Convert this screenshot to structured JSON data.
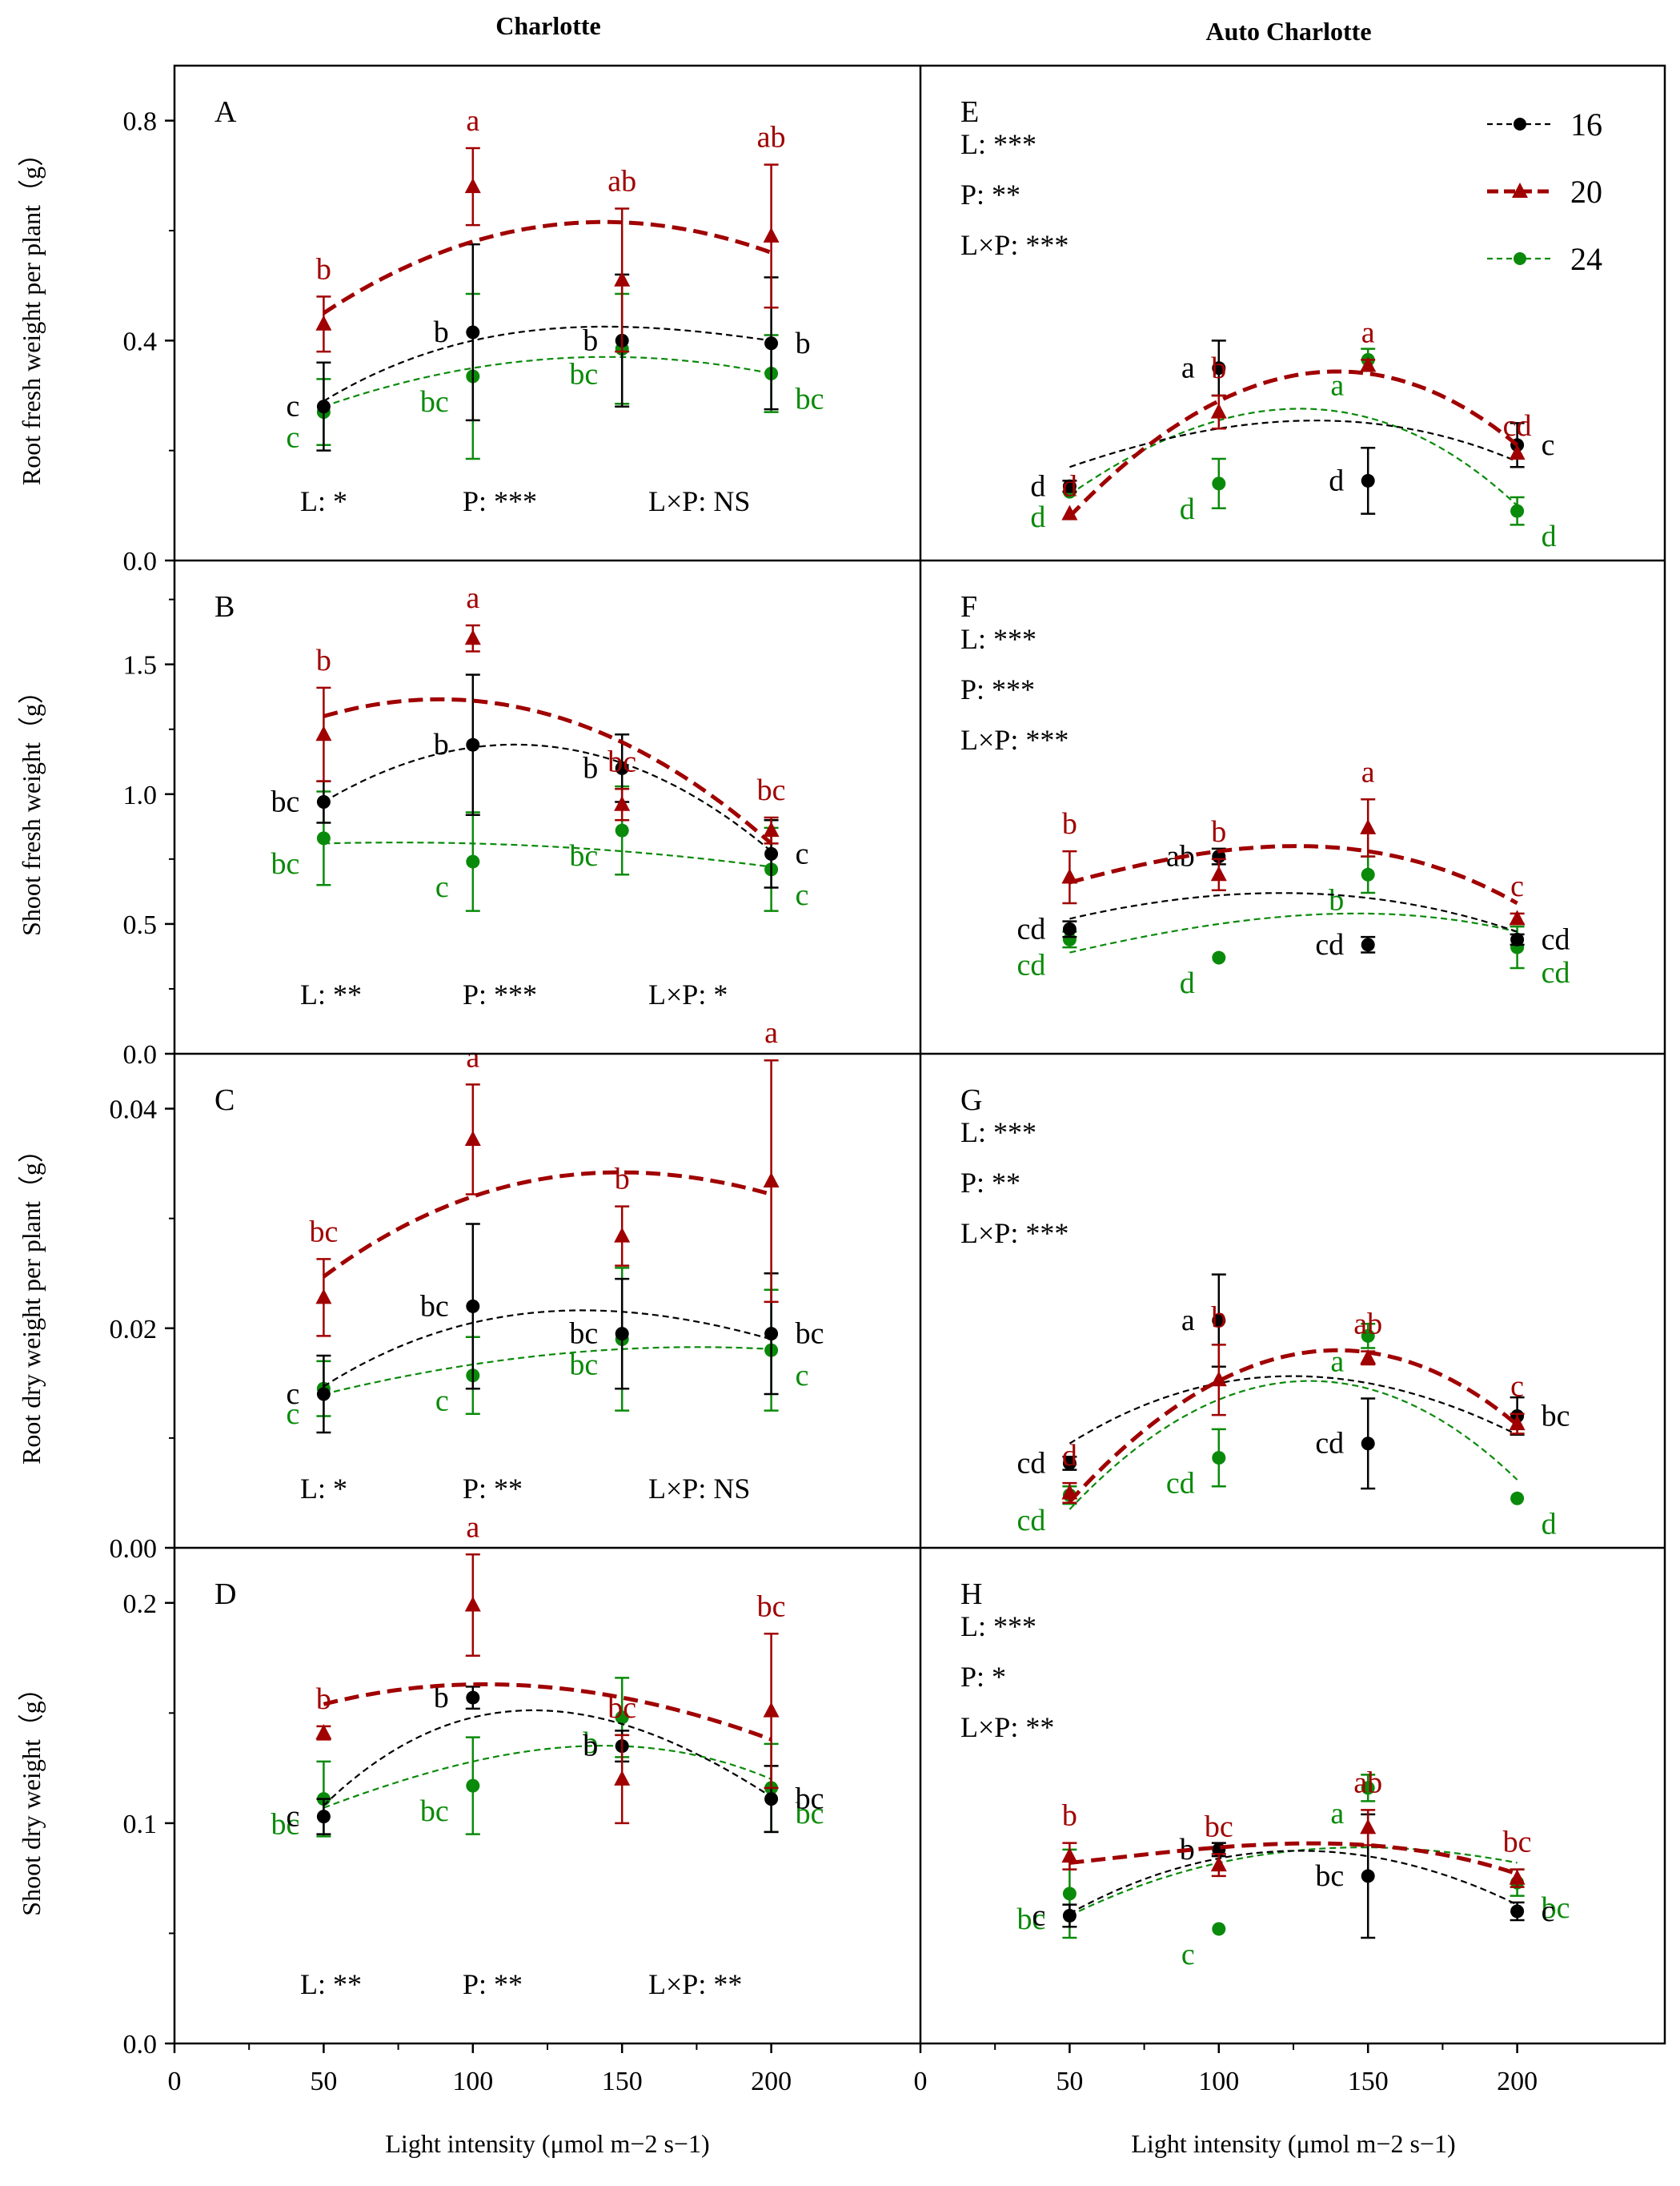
{
  "figure": {
    "col_titles": [
      "Charlotte",
      "Auto Charlotte"
    ],
    "xlabel": "Light intensity (μmol m−2 s−1)",
    "xticks": [
      "0",
      "50",
      "100",
      "150",
      "200",
      "0",
      "50",
      "100",
      "150",
      "200"
    ],
    "legend": [
      {
        "name": "16",
        "color": "#000000",
        "marker": "circle"
      },
      {
        "name": "20",
        "color": "#a00000",
        "marker": "triangle"
      },
      {
        "name": "24",
        "color": "#0a8a0a",
        "marker": "circle"
      }
    ]
  },
  "chart_data": [
    {
      "type": "scatter",
      "panel": "A",
      "cultivar": "Charlotte",
      "ylabel": "Root fresh weight per plant（g）",
      "ylim": [
        0,
        0.9
      ],
      "yticks": [
        "0.0",
        "0.4",
        "0.8"
      ],
      "x": [
        50,
        100,
        150,
        200
      ],
      "series": [
        {
          "name": "16",
          "values": [
            0.28,
            0.415,
            0.4,
            0.395
          ],
          "err": [
            0.08,
            0.16,
            0.12,
            0.12
          ],
          "letters": [
            "c",
            "b",
            "b",
            "b"
          ],
          "fit": [
            [
              50,
              0.29
            ],
            [
              100,
              0.4
            ],
            [
              150,
              0.425
            ],
            [
              200,
              0.4
            ]
          ]
        },
        {
          "name": "20",
          "values": [
            0.43,
            0.68,
            0.51,
            0.59
          ],
          "err": [
            0.05,
            0.07,
            0.13,
            0.13
          ],
          "letters": [
            "b",
            "a",
            "ab",
            "ab"
          ],
          "fit": [
            [
              50,
              0.45
            ],
            [
              100,
              0.58
            ],
            [
              150,
              0.615
            ],
            [
              200,
              0.56
            ]
          ]
        },
        {
          "name": "24",
          "values": [
            0.27,
            0.335,
            0.385,
            0.34
          ],
          "err": [
            0.06,
            0.15,
            0.1,
            0.07
          ],
          "letters": [
            "c",
            "bc",
            "bc",
            "bc"
          ],
          "fit": [
            [
              50,
              0.28
            ],
            [
              100,
              0.35
            ],
            [
              150,
              0.37
            ],
            [
              200,
              0.34
            ]
          ]
        }
      ],
      "stats": [
        "L: *",
        "P: ***",
        "L×P: NS"
      ]
    },
    {
      "type": "scatter",
      "panel": "B",
      "cultivar": "Charlotte",
      "ylabel": "Shoot fresh weight（g）",
      "ylim": [
        0,
        1.9
      ],
      "yticks": [
        "0.0",
        "0.5",
        "1.0",
        "1.5"
      ],
      "x": [
        50,
        100,
        150,
        200
      ],
      "series": [
        {
          "name": "16",
          "values": [
            0.97,
            1.19,
            1.1,
            0.77
          ],
          "err": [
            0.08,
            0.27,
            0.13,
            0.13
          ],
          "letters": [
            "bc",
            "b",
            "b",
            "c"
          ],
          "fit": [
            [
              50,
              0.97
            ],
            [
              100,
              1.18
            ],
            [
              150,
              1.12
            ],
            [
              200,
              0.78
            ]
          ]
        },
        {
          "name": "20",
          "values": [
            1.23,
            1.6,
            0.96,
            0.86
          ],
          "err": [
            0.18,
            0.05,
            0.06,
            0.05
          ],
          "letters": [
            "b",
            "a",
            "bc",
            "bc"
          ],
          "fit": [
            [
              50,
              1.3
            ],
            [
              100,
              1.36
            ],
            [
              150,
              1.2
            ],
            [
              200,
              0.81
            ]
          ]
        },
        {
          "name": "24",
          "values": [
            0.83,
            0.74,
            0.86,
            0.71
          ],
          "err": [
            0.18,
            0.19,
            0.17,
            0.16
          ],
          "letters": [
            "bc",
            "c",
            "bc",
            "c"
          ],
          "fit": [
            [
              50,
              0.81
            ],
            [
              100,
              0.81
            ],
            [
              150,
              0.78
            ],
            [
              200,
              0.72
            ]
          ]
        }
      ],
      "stats": [
        "L: **",
        "P: ***",
        "L×P: *"
      ]
    },
    {
      "type": "scatter",
      "panel": "C",
      "cultivar": "Charlotte",
      "ylabel": "Root dry weight per plant（g）",
      "ylim": [
        0,
        0.045
      ],
      "yticks": [
        "0.00",
        "0.02",
        "0.04"
      ],
      "x": [
        50,
        100,
        150,
        200
      ],
      "series": [
        {
          "name": "16",
          "values": [
            0.014,
            0.022,
            0.0195,
            0.0195
          ],
          "err": [
            0.0035,
            0.0075,
            0.005,
            0.0055
          ],
          "letters": [
            "c",
            "bc",
            "bc",
            "bc"
          ],
          "fit": [
            [
              50,
              0.0147
            ],
            [
              100,
              0.0205
            ],
            [
              150,
              0.0215
            ],
            [
              200,
              0.019
            ]
          ]
        },
        {
          "name": "20",
          "values": [
            0.0228,
            0.0372,
            0.0284,
            0.0334
          ],
          "err": [
            0.0035,
            0.005,
            0.0027,
            0.011
          ],
          "letters": [
            "bc",
            "a",
            "b",
            "a"
          ],
          "fit": [
            [
              50,
              0.0247
            ],
            [
              100,
              0.032
            ],
            [
              150,
              0.0342
            ],
            [
              200,
              0.0322
            ]
          ]
        },
        {
          "name": "24",
          "values": [
            0.0145,
            0.0157,
            0.019,
            0.018
          ],
          "err": [
            0.0025,
            0.0035,
            0.0065,
            0.0055
          ],
          "letters": [
            "c",
            "c",
            "bc",
            "c"
          ],
          "fit": [
            [
              50,
              0.014
            ],
            [
              100,
              0.0167
            ],
            [
              150,
              0.0181
            ],
            [
              200,
              0.0181
            ]
          ]
        }
      ],
      "stats": [
        "L: *",
        "P: **",
        "L×P: NS"
      ]
    },
    {
      "type": "scatter",
      "panel": "D",
      "cultivar": "Charlotte",
      "ylabel": "Shoot dry weight（g）",
      "ylim": [
        0,
        0.225
      ],
      "yticks": [
        "0.0",
        "0.1",
        "0.2"
      ],
      "x": [
        50,
        100,
        150,
        200
      ],
      "series": [
        {
          "name": "16",
          "values": [
            0.103,
            0.157,
            0.135,
            0.111
          ],
          "err": [
            0.008,
            0.005,
            0.007,
            0.015
          ],
          "letters": [
            "c",
            "b",
            "b",
            "bc"
          ],
          "fit": [
            [
              50,
              0.108
            ],
            [
              100,
              0.148
            ],
            [
              150,
              0.145
            ],
            [
              200,
              0.112
            ]
          ]
        },
        {
          "name": "20",
          "values": [
            0.141,
            0.199,
            0.12,
            0.151
          ],
          "err": [
            0.003,
            0.023,
            0.02,
            0.035
          ],
          "letters": [
            "b",
            "a",
            "bc",
            "bc"
          ],
          "fit": [
            [
              50,
              0.154
            ],
            [
              100,
              0.163
            ],
            [
              150,
              0.157
            ],
            [
              200,
              0.138
            ]
          ]
        },
        {
          "name": "24",
          "values": [
            0.111,
            0.117,
            0.148,
            0.116
          ],
          "err": [
            0.017,
            0.022,
            0.018,
            0.02
          ],
          "letters": [
            "bc",
            "bc",
            "b",
            "bc"
          ],
          "fit": [
            [
              50,
              0.107
            ],
            [
              100,
              0.128
            ],
            [
              150,
              0.135
            ],
            [
              200,
              0.12
            ]
          ]
        }
      ],
      "stats": [
        "L: **",
        "P: **",
        "L×P: **"
      ]
    },
    {
      "type": "scatter",
      "panel": "E",
      "cultivar": "Auto Charlotte",
      "ylim": [
        0,
        0.9
      ],
      "x": [
        50,
        100,
        150,
        200
      ],
      "series": [
        {
          "name": "16",
          "values": [
            0.135,
            0.35,
            0.145,
            0.21
          ],
          "err": [
            0.01,
            0.05,
            0.06,
            0.04
          ],
          "letters": [
            "d",
            "a",
            "d",
            "c"
          ],
          "fit": [
            [
              50,
              0.17
            ],
            [
              100,
              0.24
            ],
            [
              150,
              0.25
            ],
            [
              200,
              0.18
            ]
          ]
        },
        {
          "name": "20",
          "values": [
            0.085,
            0.27,
            0.355,
            0.195
          ],
          "err": [
            0.0,
            0.03,
            0.01,
            0.0
          ],
          "letters": [
            "d",
            "b",
            "a",
            "cd"
          ],
          "fit": [
            [
              50,
              0.08
            ],
            [
              100,
              0.29
            ],
            [
              150,
              0.34
            ],
            [
              200,
              0.21
            ]
          ]
        },
        {
          "name": "24",
          "values": [
            0.125,
            0.14,
            0.365,
            0.09
          ],
          "err": [
            0.0,
            0.045,
            0.02,
            0.025
          ],
          "letters": [
            "d",
            "d",
            "a",
            "d"
          ],
          "fit": [
            [
              50,
              0.12
            ],
            [
              100,
              0.255
            ],
            [
              150,
              0.26
            ],
            [
              200,
              0.1
            ]
          ]
        }
      ],
      "stats": [
        "L: ***",
        "P: **",
        "L×P: ***"
      ]
    },
    {
      "type": "scatter",
      "panel": "F",
      "cultivar": "Auto Charlotte",
      "ylim": [
        0,
        1.9
      ],
      "x": [
        50,
        100,
        150,
        200
      ],
      "series": [
        {
          "name": "16",
          "values": [
            0.48,
            0.76,
            0.42,
            0.44
          ],
          "err": [
            0.03,
            0.03,
            0.03,
            0.02
          ],
          "letters": [
            "cd",
            "ab",
            "cd",
            "cd"
          ],
          "fit": [
            [
              50,
              0.52
            ],
            [
              100,
              0.61
            ],
            [
              150,
              0.6
            ],
            [
              200,
              0.47
            ]
          ]
        },
        {
          "name": "20",
          "values": [
            0.68,
            0.69,
            0.87,
            0.52
          ],
          "err": [
            0.1,
            0.06,
            0.11,
            0.02
          ],
          "letters": [
            "b",
            "b",
            "a",
            "c"
          ],
          "fit": [
            [
              50,
              0.66
            ],
            [
              100,
              0.78
            ],
            [
              150,
              0.78
            ],
            [
              200,
              0.58
            ]
          ]
        },
        {
          "name": "24",
          "values": [
            0.44,
            0.37,
            0.69,
            0.41
          ],
          "err": [
            0.03,
            0.0,
            0.07,
            0.08
          ],
          "letters": [
            "cd",
            "d",
            "b",
            "cd"
          ],
          "fit": [
            [
              50,
              0.39
            ],
            [
              100,
              0.5
            ],
            [
              150,
              0.54
            ],
            [
              200,
              0.47
            ]
          ]
        }
      ],
      "stats": [
        "L: ***",
        "P: ***",
        "L×P: ***"
      ]
    },
    {
      "type": "scatter",
      "panel": "G",
      "cultivar": "Auto Charlotte",
      "ylim": [
        0,
        0.045
      ],
      "x": [
        50,
        100,
        150,
        200
      ],
      "series": [
        {
          "name": "16",
          "values": [
            0.0077,
            0.0207,
            0.0095,
            0.012
          ],
          "err": [
            0.0006,
            0.0042,
            0.0041,
            0.0017
          ],
          "letters": [
            "cd",
            "a",
            "cd",
            "bc"
          ],
          "fit": [
            [
              50,
              0.0095
            ],
            [
              100,
              0.015
            ],
            [
              150,
              0.015
            ],
            [
              200,
              0.0103
            ]
          ]
        },
        {
          "name": "20",
          "values": [
            0.005,
            0.0153,
            0.0173,
            0.0113
          ],
          "err": [
            0.0009,
            0.0032,
            0.0006,
            0.0009
          ],
          "letters": [
            "d",
            "b",
            "ab",
            "c"
          ],
          "fit": [
            [
              50,
              0.0042
            ],
            [
              100,
              0.0152
            ],
            [
              150,
              0.0178
            ],
            [
              200,
              0.0112
            ]
          ]
        },
        {
          "name": "24",
          "values": [
            0.0048,
            0.0082,
            0.0193,
            0.0045
          ],
          "err": [
            0.0008,
            0.0026,
            0.0011,
            0.0
          ],
          "letters": [
            "cd",
            "cd",
            "a",
            "d"
          ],
          "fit": [
            [
              50,
              0.0035
            ],
            [
              100,
              0.0135
            ],
            [
              150,
              0.0145
            ],
            [
              200,
              0.0062
            ]
          ]
        }
      ],
      "stats": [
        "L: ***",
        "P: **",
        "L×P: ***"
      ]
    },
    {
      "type": "scatter",
      "panel": "H",
      "cultivar": "Auto Charlotte",
      "ylim": [
        0,
        0.225
      ],
      "x": [
        50,
        100,
        150,
        200
      ],
      "series": [
        {
          "name": "16",
          "values": [
            0.058,
            0.088,
            0.076,
            0.06
          ],
          "err": [
            0.005,
            0.003,
            0.028,
            0.004
          ],
          "letters": [
            "c",
            "b",
            "bc",
            "c"
          ],
          "fit": [
            [
              50,
              0.059
            ],
            [
              100,
              0.084
            ],
            [
              150,
              0.085
            ],
            [
              200,
              0.063
            ]
          ]
        },
        {
          "name": "20",
          "values": [
            0.085,
            0.081,
            0.098,
            0.075
          ],
          "err": [
            0.006,
            0.005,
            0.008,
            0.004
          ],
          "letters": [
            "b",
            "bc",
            "ab",
            "bc"
          ],
          "fit": [
            [
              50,
              0.082
            ],
            [
              100,
              0.089
            ],
            [
              150,
              0.09
            ],
            [
              200,
              0.077
            ]
          ]
        },
        {
          "name": "24",
          "values": [
            0.068,
            0.052,
            0.116,
            0.073
          ],
          "err": [
            0.02,
            0.0,
            0.006,
            0.006
          ],
          "letters": [
            "bc",
            "c",
            "a",
            "bc"
          ],
          "fit": [
            [
              50,
              0.058
            ],
            [
              100,
              0.082
            ],
            [
              150,
              0.089
            ],
            [
              200,
              0.082
            ]
          ]
        }
      ],
      "stats": [
        "L: ***",
        "P: *",
        "L×P: **"
      ]
    }
  ]
}
